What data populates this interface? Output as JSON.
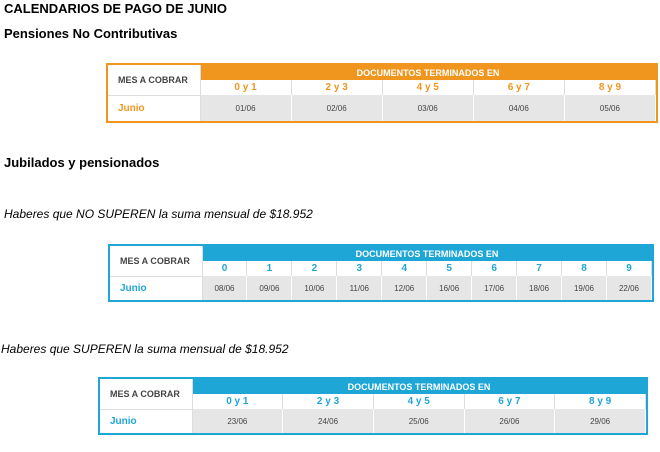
{
  "title": "CALENDARIOS DE PAGO DE JUNIO",
  "section1": {
    "heading": "Pensiones No Contributivas",
    "table": {
      "mes_header": "MES A COBRAR",
      "docs_header": "DOCUMENTOS TERMINADOS EN",
      "digits": [
        "0 y 1",
        "2 y 3",
        "4 y 5",
        "6 y 7",
        "8 y 9"
      ],
      "month": "Junio",
      "dates": [
        "01/06",
        "02/06",
        "03/06",
        "04/06",
        "05/06"
      ]
    }
  },
  "section2": {
    "heading": "Jubilados y pensionados",
    "note1": "Haberes que NO SUPEREN la suma mensual de $18.952",
    "table1": {
      "mes_header": "MES A COBRAR",
      "docs_header": "DOCUMENTOS TERMINADOS EN",
      "digits": [
        "0",
        "1",
        "2",
        "3",
        "4",
        "5",
        "6",
        "7",
        "8",
        "9"
      ],
      "month": "Junio",
      "dates": [
        "08/06",
        "09/06",
        "10/06",
        "11/06",
        "12/06",
        "16/06",
        "17/06",
        "18/06",
        "19/06",
        "22/06"
      ]
    },
    "note2": "Haberes que SUPEREN la suma mensual de $18.952",
    "table2": {
      "mes_header": "MES A COBRAR",
      "docs_header": "DOCUMENTOS TERMINADOS EN",
      "digits": [
        "0 y 1",
        "2 y 3",
        "4 y 5",
        "6 y 7",
        "8 y 9"
      ],
      "month": "Junio",
      "dates": [
        "23/06",
        "24/06",
        "25/06",
        "26/06",
        "29/06"
      ]
    }
  },
  "colors": {
    "orange": "#f0961e",
    "blue": "#1ea6d6",
    "date_cell": "#e6e6e6"
  }
}
